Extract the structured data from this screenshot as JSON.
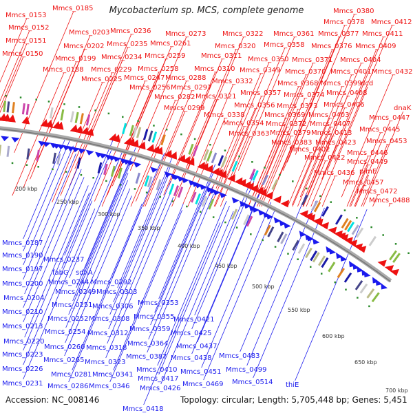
{
  "title": "Mycobacterium sp. MCS, complete genome",
  "footer": {
    "accession": "Accession: NC_008146",
    "summary": "Topology: circular; Length: 5,705,448 bp; Genes: 5,451"
  },
  "colors": {
    "forward_strand": "#ee1111",
    "reverse_strand": "#1a1aee",
    "backbone": "#999999",
    "marker": "#2a8a2a"
  },
  "scale_ticks": [
    "200 kbp",
    "250 kbp",
    "300 kbp",
    "350 kbp",
    "400 kbp",
    "450 kbp",
    "500 kbp",
    "550 kbp",
    "600 kbp",
    "650 kbp",
    "700 kbp"
  ],
  "forward_labels": [
    "Mmcs_0153",
    "Mmcs_0152",
    "Mmcs_0151",
    "Mmcs_0150",
    "Mmcs_0185",
    "Mmcs_0203",
    "Mmcs_0202",
    "Mmcs_0199",
    "Mmcs_0188",
    "Mmcs_0236",
    "Mmcs_0235",
    "Mmcs_0234",
    "Mmcs_0229",
    "Mmcs_0225",
    "Mmcs_0273",
    "Mmcs_0261",
    "Mmcs_0259",
    "Mmcs_0258",
    "Mmcs_0247",
    "Mmcs_0256",
    "Mmcs_0288",
    "Mmcs_0297",
    "Mmcs_0282",
    "Mmcs_0299",
    "Mmcs_0322",
    "Mmcs_0320",
    "Mmcs_0311",
    "Mmcs_0310",
    "Mmcs_0332",
    "Mmcs_0321",
    "Mmcs_0338",
    "Mmcs_0361",
    "Mmcs_0358",
    "Mmcs_0350",
    "Mmcs_0349",
    "Mmcs_0357",
    "Mmcs_0356",
    "Mmcs_0354",
    "Mmcs_0363",
    "Mmcs_0380",
    "Mmcs_0378",
    "Mmcs_0377",
    "Mmcs_0376",
    "Mmcs_0371",
    "Mmcs_0370",
    "Mmcs_0368",
    "Mmcs_0374",
    "Mmcs_0373",
    "Mmcs_0369",
    "Mmcs_0372",
    "Mmcs_0379",
    "Mmcs_0383",
    "Mmcs_0412",
    "Mmcs_0411",
    "Mmcs_0409",
    "Mmcs_0404",
    "Mmcs_0401",
    "Mmcs_0399",
    "Mmcs_0408",
    "Mmcs_0406",
    "Mmcs_0403",
    "Mmcs_0407",
    "Mmcs_0413",
    "Mmcs_0402",
    "Mmcs_0423",
    "Mmcs_0422",
    "Mmcs_0432",
    "dcd",
    "dnaK",
    "Mmcs_0447",
    "Mmcs_0445",
    "Mmcs_0453",
    "Mmcs_0446",
    "Mmcs_0449",
    "pimE",
    "Mmcs_0436",
    "Mmcs_0457",
    "Mmcs_0472",
    "Mmcs_0488"
  ],
  "reverse_labels": [
    "Mmcs_0187",
    "Mmcs_0190",
    "Mmcs_0197",
    "Mmcs_0200",
    "Mmcs_0204",
    "Mmcs_0210",
    "Mmcs_0213",
    "Mmcs_0220",
    "Mmcs_0223",
    "Mmcs_0226",
    "Mmcs_0231",
    "Mmcs_0237",
    "fabG",
    "sdhA",
    "Mmcs_0244",
    "Mmcs_0249",
    "Mmcs_0251",
    "Mmcs_0252",
    "Mmcs_0254",
    "Mmcs_0260",
    "Mmcs_0265",
    "Mmcs_0281",
    "Mmcs_0286",
    "Mmcs_0292",
    "Mmcs_0303",
    "Mmcs_0306",
    "Mmcs_0308",
    "Mmcs_0312",
    "Mmcs_0318",
    "Mmcs_0323",
    "Mmcs_0341",
    "Mmcs_0346",
    "Mmcs_0353",
    "Mmcs_0355",
    "Mmcs_0359",
    "Mmcs_0364",
    "Mmcs_0387",
    "Mmcs_0410",
    "Mmcs_0417",
    "Mmcs_0426",
    "Mmcs_0418",
    "Mmcs_0421",
    "Mmcs_0425",
    "Mmcs_0437",
    "Mmcs_0438",
    "Mmcs_0451",
    "Mmcs_0469",
    "Mmcs_0483",
    "Mmcs_0499",
    "Mmcs_0514",
    "thiE"
  ]
}
